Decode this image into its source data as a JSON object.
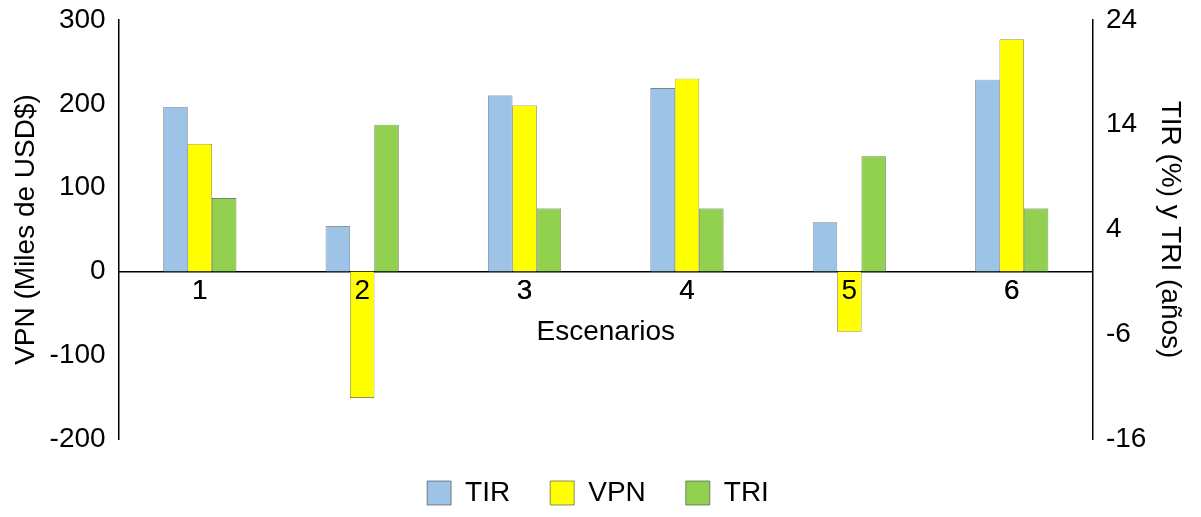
{
  "chart_data": {
    "type": "bar",
    "xlabel": "Escenarios",
    "ylabel": "VPN (Miles de USD$)",
    "y2label": "TIR (%) y TRI (años)",
    "categories": [
      "1",
      "2",
      "3",
      "4",
      "5",
      "6"
    ],
    "series": [
      {
        "name": "TIR",
        "color": "#9dc3e6",
        "axis": "y2",
        "values": [
          15.7,
          4.3,
          16.8,
          17.5,
          4.7,
          18.3
        ]
      },
      {
        "name": "VPN",
        "color": "#ffff00",
        "values": [
          152,
          -151,
          198,
          230,
          -72,
          277
        ]
      },
      {
        "name": "TRI",
        "color": "#92d050",
        "axis": "y2",
        "values": [
          7,
          14,
          6,
          6,
          11,
          6
        ]
      }
    ],
    "ylim": [
      -200,
      300
    ],
    "yticks": [
      -200,
      -100,
      0,
      100,
      200,
      300
    ],
    "y2lim": [
      -16,
      24
    ],
    "y2ticks": [
      -16,
      -6,
      4,
      14,
      24
    ],
    "grid": false,
    "legend": "bottom"
  }
}
